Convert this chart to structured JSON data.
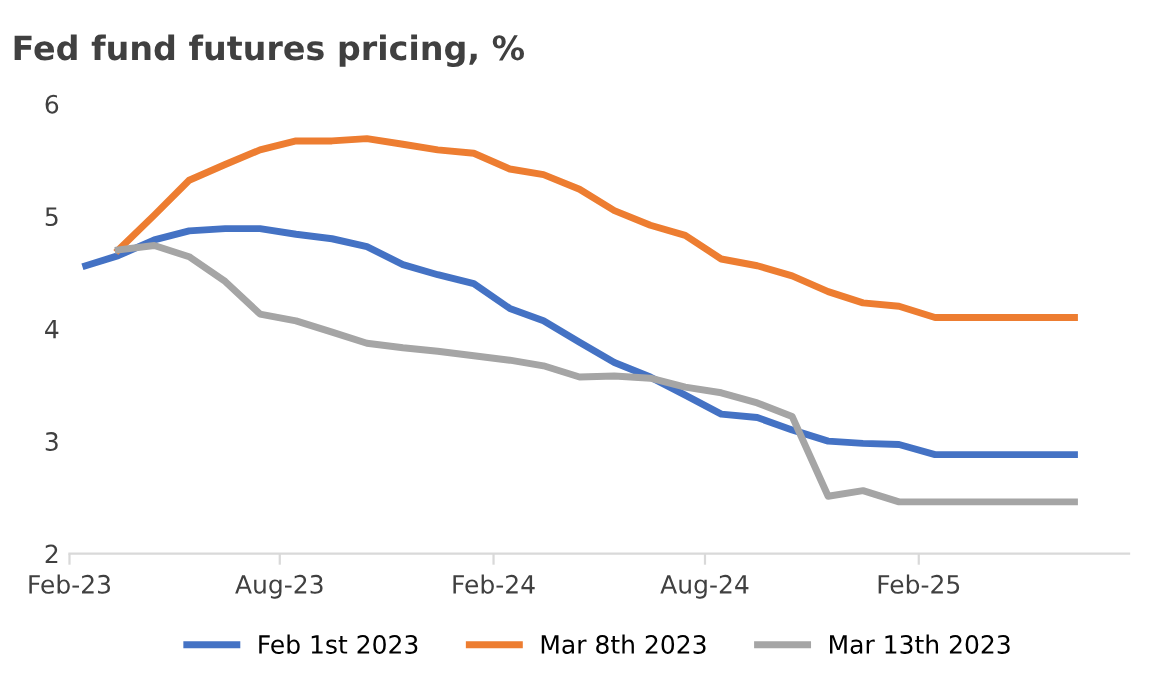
{
  "chart_data": {
    "type": "line",
    "title": "Fed fund futures pricing, %",
    "x": [
      "2023-02-15",
      "2023-03-15",
      "2023-04-15",
      "2023-05-15",
      "2023-06-15",
      "2023-07-15",
      "2023-08-15",
      "2023-09-15",
      "2023-10-15",
      "2023-11-15",
      "2023-12-15",
      "2024-01-15",
      "2024-02-15",
      "2024-03-15",
      "2024-04-15",
      "2024-05-15",
      "2024-06-15",
      "2024-07-15",
      "2024-08-15",
      "2024-09-15",
      "2024-10-15",
      "2024-11-15",
      "2024-12-15",
      "2025-01-15",
      "2025-02-15",
      "2025-03-15",
      "2025-04-15",
      "2025-05-15",
      "2025-06-15"
    ],
    "series": [
      {
        "name": "Feb 1st 2023",
        "color": "#4472c4",
        "values": [
          4.56,
          4.65,
          4.79,
          4.87,
          4.89,
          4.89,
          4.84,
          4.8,
          4.73,
          4.57,
          4.48,
          4.4,
          4.18,
          4.07,
          3.88,
          3.7,
          3.57,
          3.41,
          3.24,
          3.21,
          3.1,
          3.0,
          2.98,
          2.97,
          2.88,
          2.88,
          2.88,
          2.88,
          2.88
        ]
      },
      {
        "name": "Mar 8th 2023",
        "color": "#ed7d31",
        "values": [
          null,
          4.7,
          5.01,
          5.32,
          5.46,
          5.59,
          5.67,
          5.67,
          5.69,
          5.64,
          5.59,
          5.56,
          5.42,
          5.37,
          5.24,
          5.05,
          4.92,
          4.83,
          4.62,
          4.56,
          4.47,
          4.33,
          4.23,
          4.2,
          4.1,
          4.1,
          4.1,
          4.1,
          4.1
        ]
      },
      {
        "name": "Mar 13th 2023",
        "color": "#a5a5a5",
        "values": [
          null,
          4.7,
          4.74,
          4.64,
          4.42,
          4.13,
          4.07,
          3.97,
          3.87,
          3.83,
          3.8,
          3.76,
          3.72,
          3.67,
          3.57,
          3.58,
          3.56,
          3.48,
          3.43,
          3.34,
          3.22,
          2.51,
          2.56,
          2.46,
          2.46,
          2.46,
          2.46,
          2.46,
          2.46
        ]
      }
    ],
    "xlim": [
      "2023-02-01",
      "2025-08-01"
    ],
    "xticks": [
      {
        "value": "2023-02-01",
        "label": "Feb-23"
      },
      {
        "value": "2023-08-01",
        "label": "Aug-23"
      },
      {
        "value": "2024-02-01",
        "label": "Feb-24"
      },
      {
        "value": "2024-08-01",
        "label": "Aug-24"
      },
      {
        "value": "2025-02-01",
        "label": "Feb-25"
      }
    ],
    "ylim": [
      2,
      6
    ],
    "yticks": [
      2,
      3,
      4,
      5,
      6
    ],
    "grid": false,
    "legend": "bottom",
    "marker": "none",
    "line_style": "solid"
  }
}
